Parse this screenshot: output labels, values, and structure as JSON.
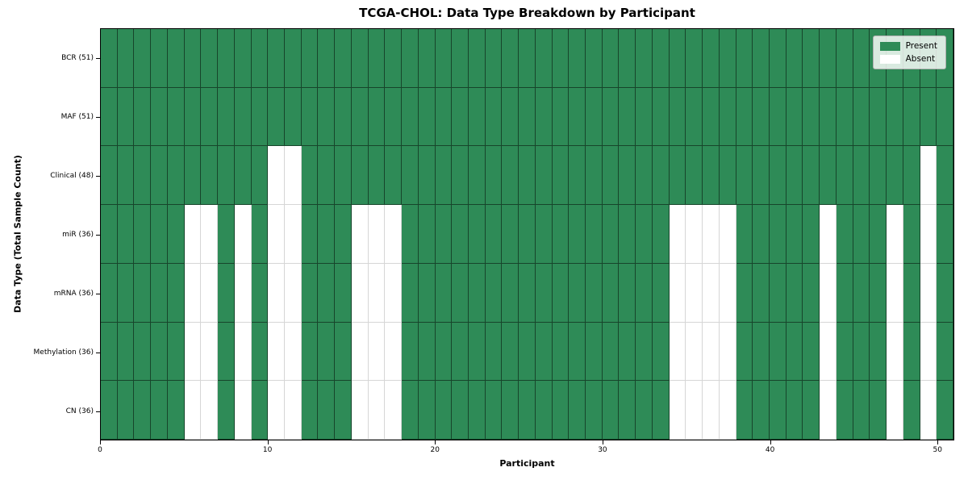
{
  "title": "TCGA-CHOL: Data Type Breakdown by Participant",
  "chart_data": {
    "type": "heatmap",
    "title": "TCGA-CHOL: Data Type Breakdown by Participant",
    "xlabel": "Participant",
    "ylabel": "Data Type (Total Sample Count)",
    "x_range": [
      0,
      51
    ],
    "n_columns": 51,
    "x_ticks": [
      0,
      10,
      20,
      30,
      40,
      50
    ],
    "grid": true,
    "legend_position": "upper-right",
    "colors": {
      "present": "#2e8b57",
      "absent": "#ffffff"
    },
    "legend": {
      "entries": [
        {
          "label": "Present",
          "color": "#2e8b57"
        },
        {
          "label": "Absent",
          "color": "#ffffff"
        }
      ]
    },
    "rows": [
      {
        "label": "BCR (51)",
        "total": 51,
        "absent_columns": []
      },
      {
        "label": "MAF (51)",
        "total": 51,
        "absent_columns": []
      },
      {
        "label": "Clinical (48)",
        "total": 48,
        "absent_columns": [
          10,
          11,
          49
        ]
      },
      {
        "label": "miR (36)",
        "total": 36,
        "absent_columns": [
          5,
          6,
          8,
          10,
          11,
          15,
          16,
          17,
          34,
          35,
          36,
          37,
          43,
          47,
          49
        ]
      },
      {
        "label": "mRNA (36)",
        "total": 36,
        "absent_columns": [
          5,
          6,
          8,
          10,
          11,
          15,
          16,
          17,
          34,
          35,
          36,
          37,
          43,
          47,
          49
        ]
      },
      {
        "label": "Methylation (36)",
        "total": 36,
        "absent_columns": [
          5,
          6,
          8,
          10,
          11,
          15,
          16,
          17,
          34,
          35,
          36,
          37,
          43,
          47,
          49
        ]
      },
      {
        "label": "CN (36)",
        "total": 36,
        "absent_columns": [
          5,
          6,
          8,
          10,
          11,
          15,
          16,
          17,
          34,
          35,
          36,
          37,
          43,
          47,
          49
        ]
      }
    ]
  }
}
